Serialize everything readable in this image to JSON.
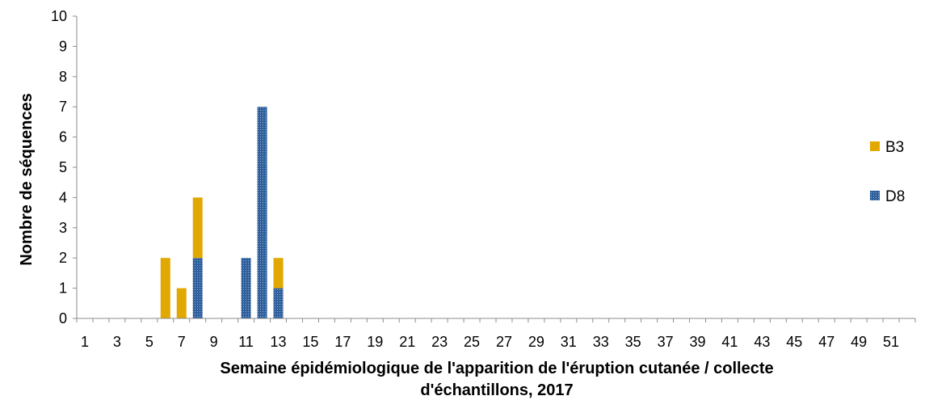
{
  "chart_data": {
    "type": "bar",
    "stacked": true,
    "xlabel_lines": [
      "Semaine épidémiologique de l'apparition de l'éruption cutanée / collecte",
      "d'échantillons, 2017"
    ],
    "ylabel": "Nombre de séquences",
    "ylim": [
      0,
      10
    ],
    "yticks": [
      0,
      1,
      2,
      3,
      4,
      5,
      6,
      7,
      8,
      9,
      10
    ],
    "xlim": [
      1,
      52
    ],
    "xtick_labels": [
      1,
      3,
      5,
      7,
      9,
      11,
      13,
      15,
      17,
      19,
      21,
      23,
      25,
      27,
      29,
      31,
      33,
      35,
      37,
      39,
      41,
      43,
      45,
      47,
      49,
      51
    ],
    "grid": false,
    "legend_position": "right",
    "x": [
      6,
      7,
      8,
      11,
      12,
      13
    ],
    "series": [
      {
        "name": "D8",
        "color": "#2e5f9c",
        "pattern": "dotted",
        "values": [
          0,
          0,
          2,
          2,
          7,
          1
        ]
      },
      {
        "name": "B3",
        "color": "#e0a800",
        "pattern": "solid",
        "values": [
          2,
          1,
          2,
          0,
          0,
          1
        ]
      }
    ],
    "legend_order": [
      "B3",
      "D8"
    ]
  }
}
